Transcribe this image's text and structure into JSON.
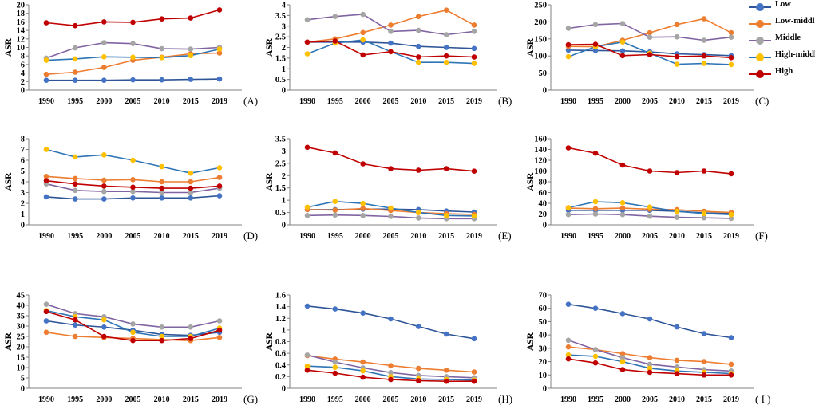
{
  "chart_data": {
    "type": "line",
    "ylabel": "ASR",
    "categories": [
      "1990",
      "1995",
      "2000",
      "2005",
      "2010",
      "2015",
      "2019"
    ],
    "legend": [
      {
        "name": "Low",
        "color": "#2E5597"
      },
      {
        "name": "Low-middle",
        "color": "#ED7D31"
      },
      {
        "name": "Middle",
        "color": "#8064A2"
      },
      {
        "name": "High-middle",
        "color": "#FFC000"
      },
      {
        "name": "High",
        "color": "#C00000"
      }
    ],
    "panels": [
      {
        "label": "(A)",
        "ylim": [
          0,
          20
        ],
        "yticks": [
          "0",
          "2",
          "4",
          "6",
          "8",
          "10",
          "12",
          "14",
          "16",
          "18",
          "20"
        ],
        "series": [
          {
            "name": "Low",
            "values": [
              2.3,
              2.3,
              2.3,
              2.4,
              2.4,
              2.5,
              2.6
            ]
          },
          {
            "name": "Low-middle",
            "values": [
              3.7,
              4.2,
              5.3,
              7.0,
              7.7,
              8.5,
              8.7
            ]
          },
          {
            "name": "Middle",
            "values": [
              7.5,
              9.9,
              11.1,
              10.9,
              9.7,
              9.6,
              10.0
            ]
          },
          {
            "name": "High-middle",
            "values": [
              7.0,
              7.3,
              7.8,
              7.7,
              7.6,
              8.1,
              9.6
            ]
          },
          {
            "name": "High",
            "values": [
              15.8,
              15.1,
              16.0,
              15.9,
              16.7,
              16.9,
              18.8
            ]
          }
        ]
      },
      {
        "label": "(B)",
        "ylim": [
          0,
          4
        ],
        "yticks": [
          "0",
          "0.5",
          "1",
          "1.5",
          "2",
          "2.5",
          "3",
          "3.5",
          "4"
        ],
        "series": [
          {
            "name": "Low",
            "values": [
              2.25,
              2.25,
              2.25,
              2.2,
              2.05,
              2.0,
              1.95
            ]
          },
          {
            "name": "Low-middle",
            "values": [
              2.25,
              2.4,
              2.7,
              3.05,
              3.45,
              3.75,
              3.05
            ]
          },
          {
            "name": "Middle",
            "values": [
              3.3,
              3.45,
              3.55,
              2.75,
              2.8,
              2.6,
              2.75
            ]
          },
          {
            "name": "High-middle",
            "values": [
              1.7,
              2.2,
              2.35,
              1.8,
              1.3,
              1.3,
              1.25
            ]
          },
          {
            "name": "High",
            "values": [
              2.25,
              2.3,
              1.65,
              1.8,
              1.55,
              1.6,
              1.55
            ]
          }
        ]
      },
      {
        "label": "(C)",
        "ylim": [
          0,
          250
        ],
        "yticks": [
          "0",
          "50",
          "100",
          "150",
          "200",
          "250"
        ],
        "series": [
          {
            "name": "Low",
            "values": [
              117,
              116,
              115,
              112,
              106,
              104,
              101
            ]
          },
          {
            "name": "Low-middle",
            "values": [
              128,
              127,
              146,
              168,
              192,
              209,
              168
            ]
          },
          {
            "name": "Middle",
            "values": [
              181,
              192,
              195,
              155,
              156,
              146,
              155
            ]
          },
          {
            "name": "High-middle",
            "values": [
              98,
              127,
              141,
              108,
              76,
              78,
              75
            ]
          },
          {
            "name": "High",
            "values": [
              133,
              134,
              101,
              104,
              98,
              100,
              95
            ]
          }
        ]
      },
      {
        "label": "(D)",
        "ylim": [
          0,
          8
        ],
        "yticks": [
          "0",
          "1",
          "2",
          "3",
          "4",
          "5",
          "6",
          "7",
          "8"
        ],
        "series": [
          {
            "name": "Low",
            "values": [
              2.6,
              2.4,
              2.4,
              2.5,
              2.5,
              2.5,
              2.7
            ]
          },
          {
            "name": "Low-middle",
            "values": [
              4.5,
              4.3,
              4.15,
              4.2,
              4.0,
              4.0,
              4.4
            ]
          },
          {
            "name": "Middle",
            "values": [
              3.8,
              3.2,
              3.1,
              3.1,
              3.0,
              3.0,
              3.4
            ]
          },
          {
            "name": "High-middle",
            "values": [
              7.0,
              6.3,
              6.5,
              6.0,
              5.4,
              4.8,
              5.3
            ]
          },
          {
            "name": "High",
            "values": [
              4.1,
              3.8,
              3.6,
              3.5,
              3.4,
              3.4,
              3.6
            ]
          }
        ]
      },
      {
        "label": "(E)",
        "ylim": [
          0,
          3.5
        ],
        "yticks": [
          "0",
          "0.5",
          "1",
          "1.5",
          "2",
          "2.5",
          "3",
          "3.5"
        ],
        "series": [
          {
            "name": "Low",
            "values": [
              0.62,
              0.62,
              0.64,
              0.64,
              0.62,
              0.56,
              0.52
            ]
          },
          {
            "name": "Low-middle",
            "values": [
              0.62,
              0.6,
              0.66,
              0.58,
              0.5,
              0.45,
              0.42
            ]
          },
          {
            "name": "Middle",
            "values": [
              0.38,
              0.4,
              0.38,
              0.34,
              0.28,
              0.25,
              0.25
            ]
          },
          {
            "name": "High-middle",
            "values": [
              0.72,
              0.95,
              0.87,
              0.68,
              0.5,
              0.38,
              0.36
            ]
          },
          {
            "name": "High",
            "values": [
              3.15,
              2.92,
              2.48,
              2.28,
              2.22,
              2.28,
              2.18
            ]
          }
        ]
      },
      {
        "label": "(F)",
        "ylim": [
          0,
          160
        ],
        "yticks": [
          "0",
          "20",
          "40",
          "60",
          "80",
          "100",
          "120",
          "140",
          "160"
        ],
        "series": [
          {
            "name": "Low",
            "values": [
              27,
              27,
              27,
              27,
              25,
              22,
              21
            ]
          },
          {
            "name": "Low-middle",
            "values": [
              31,
              30,
              31,
              29,
              28,
              25,
              23
            ]
          },
          {
            "name": "Middle",
            "values": [
              19,
              20,
              19,
              16,
              14,
              13,
              12
            ]
          },
          {
            "name": "High-middle",
            "values": [
              32,
              43,
              41,
              33,
              25,
              21,
              19
            ]
          },
          {
            "name": "High",
            "values": [
              143,
              133,
              111,
              100,
              97,
              100,
              95
            ]
          }
        ]
      },
      {
        "label": "(G)",
        "ylim": [
          0,
          45
        ],
        "yticks": [
          "0",
          "5",
          "10",
          "15",
          "20",
          "25",
          "30",
          "35",
          "40",
          "45"
        ],
        "series": [
          {
            "name": "Low",
            "values": [
              32.5,
              30.5,
              29.5,
              28,
              26,
              25.5,
              27
            ]
          },
          {
            "name": "Low-middle",
            "values": [
              27,
              25,
              24.5,
              24,
              23.5,
              23,
              24.5
            ]
          },
          {
            "name": "Middle",
            "values": [
              40.5,
              36,
              34.5,
              31,
              29.5,
              29.5,
              32.5
            ]
          },
          {
            "name": "High-middle",
            "values": [
              37.5,
              34.5,
              33,
              27,
              25,
              25,
              29
            ]
          },
          {
            "name": "High",
            "values": [
              37,
              33,
              25,
              23,
              23,
              24,
              28
            ]
          }
        ]
      },
      {
        "label": "(H)",
        "ylim": [
          0,
          1.6
        ],
        "yticks": [
          "0",
          "0.2",
          "0.4",
          "0.6",
          "0.8",
          "1",
          "1.2",
          "1.4",
          "1.6"
        ],
        "series": [
          {
            "name": "Low",
            "values": [
              1.41,
              1.36,
              1.29,
              1.19,
              1.06,
              0.93,
              0.85
            ]
          },
          {
            "name": "Low-middle",
            "values": [
              0.56,
              0.5,
              0.45,
              0.39,
              0.34,
              0.31,
              0.28
            ]
          },
          {
            "name": "Middle",
            "values": [
              0.57,
              0.45,
              0.35,
              0.27,
              0.22,
              0.2,
              0.18
            ]
          },
          {
            "name": "High-middle",
            "values": [
              0.38,
              0.36,
              0.3,
              0.2,
              0.16,
              0.15,
              0.14
            ]
          },
          {
            "name": "High",
            "values": [
              0.31,
              0.26,
              0.19,
              0.15,
              0.13,
              0.12,
              0.12
            ]
          }
        ]
      },
      {
        "label": "( I )",
        "ylim": [
          0,
          70
        ],
        "yticks": [
          "0",
          "10",
          "20",
          "30",
          "40",
          "50",
          "60",
          "70"
        ],
        "series": [
          {
            "name": "Low",
            "values": [
              63,
              60,
              56,
              52,
              46,
              41,
              38
            ]
          },
          {
            "name": "Low-middle",
            "values": [
              31,
              29,
              26,
              23,
              21,
              20,
              18
            ]
          },
          {
            "name": "Middle",
            "values": [
              36,
              29,
              23,
              18,
              16,
              14,
              13
            ]
          },
          {
            "name": "High-middle",
            "values": [
              25,
              24,
              20,
              15,
              13,
              12,
              11
            ]
          },
          {
            "name": "High",
            "values": [
              22,
              19,
              14,
              12,
              11,
              10,
              10
            ]
          }
        ]
      }
    ]
  }
}
